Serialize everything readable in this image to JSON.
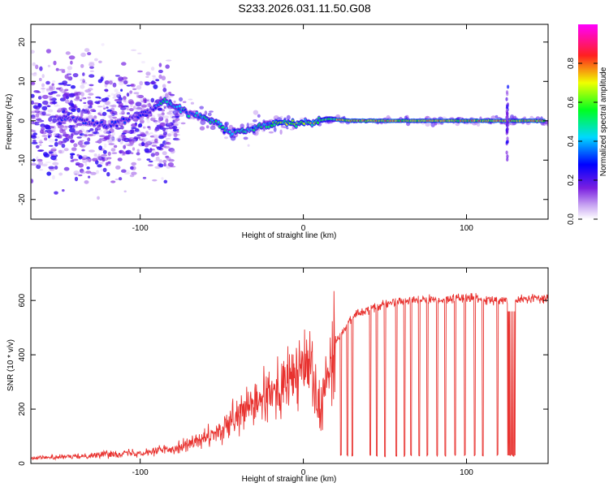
{
  "title": "S233.2026.031.11.50.G08",
  "colors": {
    "snr_line": "#e8322f",
    "frame": "#000000",
    "background": "#ffffff"
  },
  "chart_data": [
    {
      "type": "heatmap",
      "xlabel": "Height of straight line (km)",
      "ylabel": "Frequency (Hz)",
      "xlim": [
        -167,
        150
      ],
      "ylim": [
        -25,
        24.5
      ],
      "x_ticks": [
        -100,
        0,
        100
      ],
      "x_tick_labels": [
        "-100",
        "0",
        "100"
      ],
      "y_ticks": [
        -20,
        -10,
        0,
        10,
        20
      ],
      "y_tick_labels": [
        "-20",
        "-10",
        "0",
        "10",
        "20"
      ],
      "colorbar": {
        "label": "Normalized spectral amplitude",
        "range": [
          0,
          1
        ],
        "ticks": [
          0.0,
          0.2,
          0.4,
          0.6,
          0.8
        ],
        "tick_labels": [
          "0.0",
          "0.2",
          "0.4",
          "0.6",
          "0.8"
        ],
        "colormap": [
          "#ffffff",
          "#8a2be2",
          "#0000ff",
          "#00ffff",
          "#00ff00",
          "#ffff00",
          "#ff0000",
          "#ff00ff"
        ]
      },
      "ridge": {
        "description_points_x": [
          -140,
          -120,
          -100,
          -85,
          -70,
          -55,
          -45,
          -35,
          -25,
          -15,
          -5,
          5,
          15,
          30,
          60,
          100,
          150
        ],
        "description_points_y": [
          0.5,
          -1.5,
          1.5,
          5,
          2,
          0,
          -3,
          -2.5,
          -1.5,
          -0.3,
          -0.5,
          -0.5,
          0.5,
          0,
          0,
          0,
          0
        ]
      },
      "spike_x": 125
    },
    {
      "type": "line",
      "xlabel": "Height of straight line (km)",
      "ylabel": "SNR (10 * v/v)",
      "xlim": [
        -167,
        150
      ],
      "ylim": [
        0,
        720
      ],
      "x_ticks": [
        -100,
        0,
        100
      ],
      "x_tick_labels": [
        "-100",
        "0",
        "100"
      ],
      "y_ticks": [
        0,
        200,
        400,
        600
      ],
      "y_tick_labels": [
        "0",
        "200",
        "400",
        "600"
      ],
      "series": [
        {
          "name": "SNR",
          "x": [
            -167,
            -140,
            -120,
            -100,
            -80,
            -60,
            -50,
            -40,
            -30,
            -20,
            -10,
            0,
            5,
            10,
            20,
            30,
            40,
            60,
            80,
            100,
            120,
            150
          ],
          "values": [
            20,
            25,
            35,
            40,
            55,
            90,
            120,
            170,
            220,
            250,
            300,
            350,
            370,
            220,
            450,
            540,
            570,
            600,
            600,
            610,
            600,
            610
          ]
        }
      ],
      "dropouts_x": [
        23,
        27,
        30,
        41,
        45,
        50,
        57,
        62,
        66,
        71,
        76,
        82,
        87,
        93,
        99,
        105,
        110,
        119,
        127,
        128,
        129
      ]
    }
  ]
}
